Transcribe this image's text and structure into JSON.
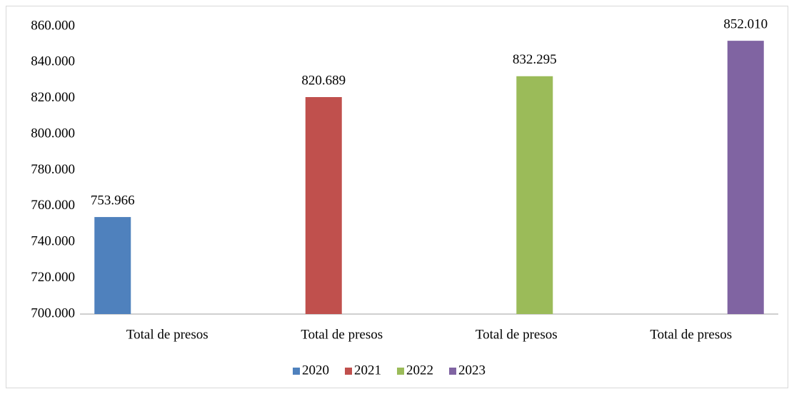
{
  "chart_data": {
    "type": "bar",
    "categories": [
      "Total de presos",
      "Total de presos",
      "Total de presos",
      "Total de presos"
    ],
    "series": [
      {
        "name": "2020",
        "color": "#4f81bd",
        "values": [
          753966,
          null,
          null,
          null
        ],
        "value_labels": [
          "753.966",
          null,
          null,
          null
        ]
      },
      {
        "name": "2021",
        "color": "#c0504d",
        "values": [
          null,
          820689,
          null,
          null
        ],
        "value_labels": [
          null,
          "820.689",
          null,
          null
        ]
      },
      {
        "name": "2022",
        "color": "#9bbb59",
        "values": [
          null,
          null,
          832295,
          null
        ],
        "value_labels": [
          null,
          null,
          "832.295",
          null
        ]
      },
      {
        "name": "2023",
        "color": "#8064a2",
        "values": [
          null,
          null,
          null,
          852010
        ],
        "value_labels": [
          null,
          null,
          null,
          "852.010"
        ]
      }
    ],
    "ylim": [
      700000,
      860000
    ],
    "yticks": [
      {
        "value": 700000,
        "label": "700.000"
      },
      {
        "value": 720000,
        "label": "720.000"
      },
      {
        "value": 740000,
        "label": "740.000"
      },
      {
        "value": 760000,
        "label": "760.000"
      },
      {
        "value": 780000,
        "label": "780.000"
      },
      {
        "value": 800000,
        "label": "800.000"
      },
      {
        "value": 820000,
        "label": "820.000"
      },
      {
        "value": 840000,
        "label": "840.000"
      },
      {
        "value": 860000,
        "label": "860.000"
      }
    ],
    "grid": false,
    "legend": "bottom"
  }
}
